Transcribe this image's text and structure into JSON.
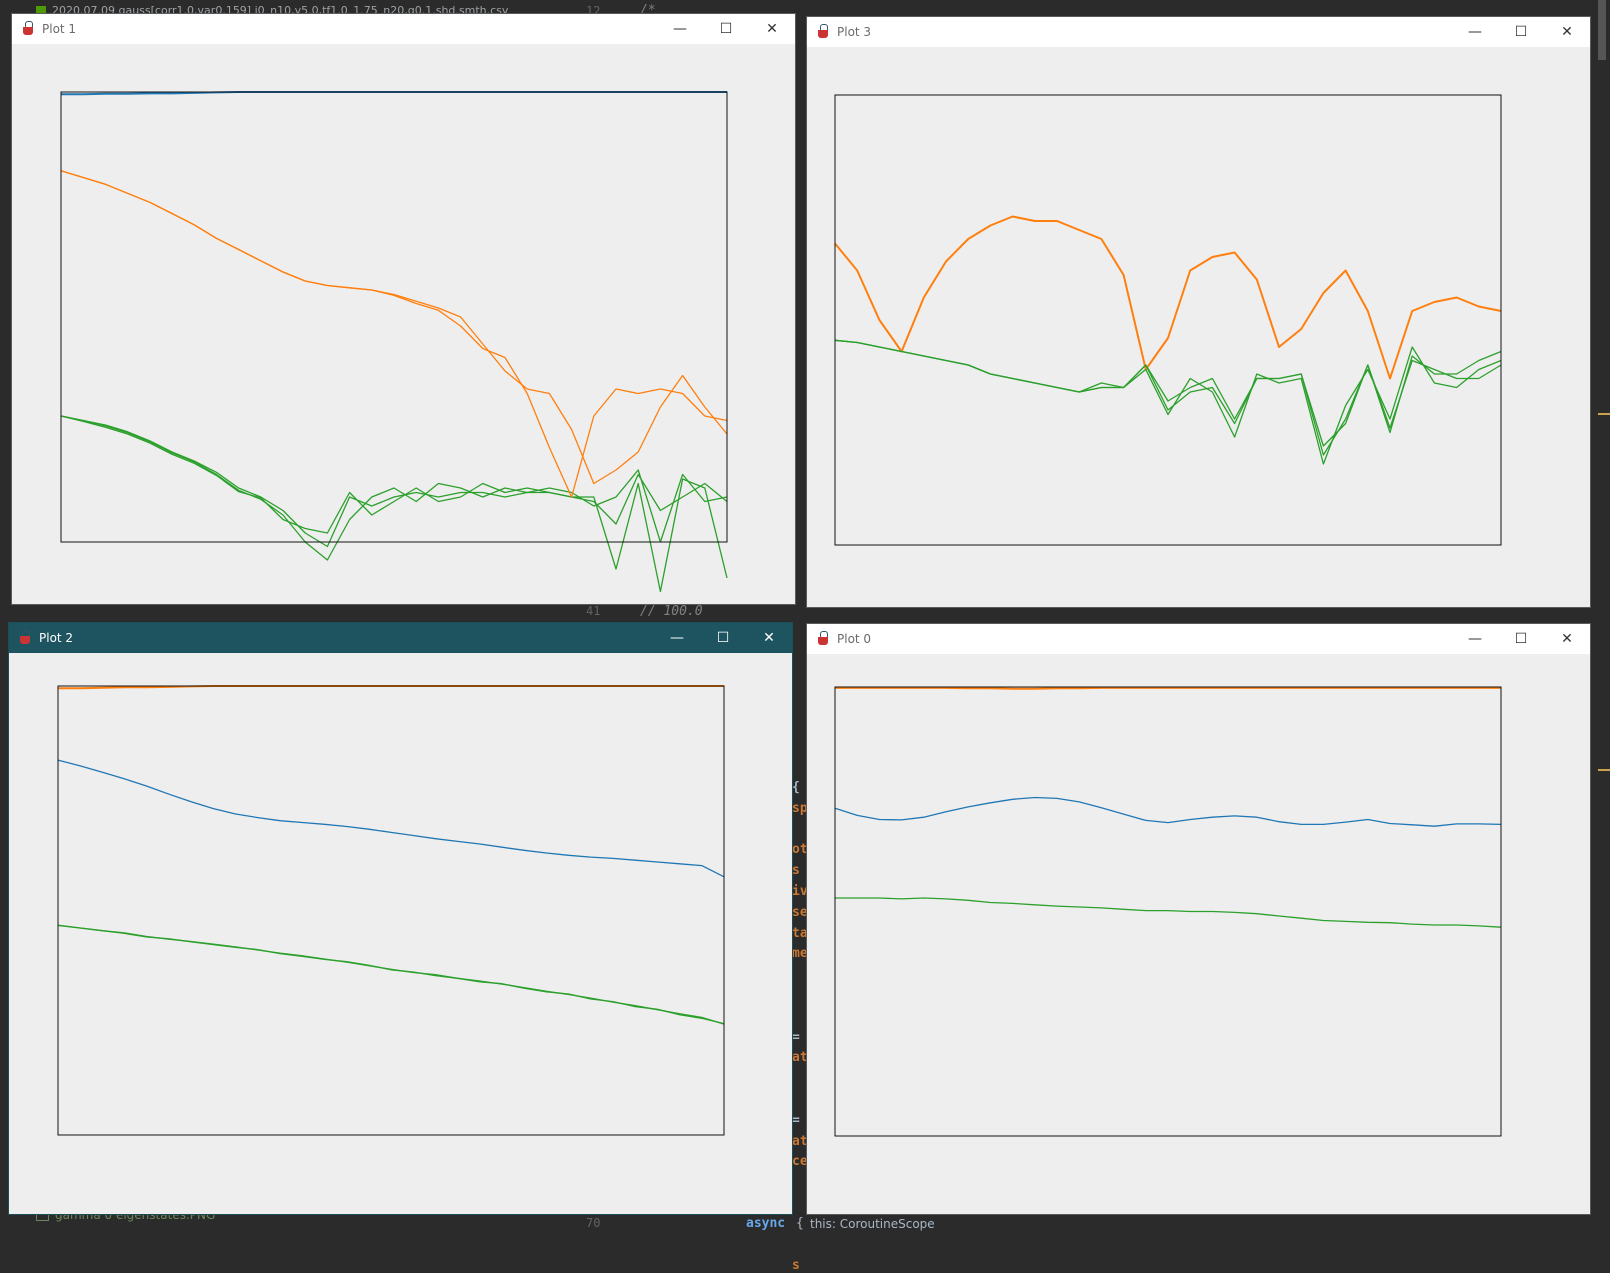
{
  "ide": {
    "top_tab": "2020.07.09 gauss[corr1.0,var0.159] i0_n10,v5.0,tf1.0_1.75_n20,g0.1.shd.smth.csv",
    "line_12": "12",
    "comment_start": "/*",
    "line_41": "41",
    "comment_100": "//       100.0",
    "line_70": "70",
    "keyword_async": "async",
    "brace": "{",
    "hint": "this: CoroutineScope",
    "file_item": "gamma 0 eigenstates.PNG",
    "peek_left": [
      "{",
      "sp",
      "",
      "ot",
      "s",
      "iv",
      "se",
      "ta",
      "me",
      "",
      "",
      "",
      "=",
      "at",
      "",
      "",
      "=",
      "at",
      "ce",
      "",
      "",
      "",
      "",
      "s"
    ]
  },
  "windows": [
    {
      "id": "plot1",
      "title": "Plot 1",
      "active": false,
      "controls": {
        "minimize": "—",
        "maximize": "☐",
        "close": "✕"
      }
    },
    {
      "id": "plot3",
      "title": "Plot 3",
      "active": false,
      "controls": {
        "minimize": "—",
        "maximize": "☐",
        "close": "✕"
      }
    },
    {
      "id": "plot2",
      "title": "Plot 2",
      "active": true,
      "controls": {
        "minimize": "—",
        "maximize": "☐",
        "close": "✕"
      }
    },
    {
      "id": "plot0",
      "title": "Plot 0",
      "active": false,
      "controls": {
        "minimize": "—",
        "maximize": "☐",
        "close": "✕"
      }
    }
  ],
  "colors": {
    "blue": "#1f77b4",
    "orange": "#ff7f0e",
    "green": "#2ca02c",
    "frame": "#111111",
    "plot_bg": "#eeeeee",
    "ide_bg": "#2b2b2b"
  },
  "chart_data": [
    {
      "type": "line",
      "title": "",
      "xlabel": "",
      "ylabel": "",
      "xlim": [
        0,
        30
      ],
      "ylim": [
        0,
        1
      ],
      "grid": false,
      "legend": "none",
      "x": [
        0,
        1,
        2,
        3,
        4,
        5,
        6,
        7,
        8,
        9,
        10,
        11,
        12,
        13,
        14,
        15,
        16,
        17,
        18,
        19,
        20,
        21,
        22,
        23,
        24,
        25,
        26,
        27,
        28,
        29,
        30
      ],
      "series": [
        {
          "name": "",
          "color": "#1f77b4",
          "values": [
            0.995,
            0.995,
            0.996,
            0.996,
            0.997,
            0.997,
            0.998,
            0.999,
            1,
            1,
            1,
            1,
            1,
            1,
            1,
            1,
            1,
            1,
            1,
            1,
            1,
            1,
            1,
            1,
            1,
            1,
            1,
            1,
            1,
            1,
            1
          ]
        },
        {
          "name": "",
          "color": "#ff7f0e",
          "values": [
            0.825,
            0.81,
            0.795,
            0.775,
            0.755,
            0.73,
            0.705,
            0.675,
            0.65,
            0.625,
            0.6,
            0.58,
            0.57,
            0.565,
            0.56,
            0.55,
            0.535,
            0.52,
            0.5,
            0.44,
            0.38,
            0.34,
            0.33,
            0.25,
            0.13,
            0.16,
            0.2,
            0.3,
            0.37,
            0.3,
            0.24
          ]
        },
        {
          "name": "",
          "color": "#2ca02c",
          "values": [
            0.28,
            0.27,
            0.26,
            0.245,
            0.225,
            0.2,
            0.18,
            0.155,
            0.12,
            0.1,
            0.07,
            0.02,
            -0.01,
            0.1,
            0.08,
            0.1,
            0.11,
            0.1,
            0.11,
            0.11,
            0.1,
            0.11,
            0.11,
            0.1,
            0.09,
            0.04,
            0.15,
            0.07,
            0.1,
            0.13,
            0.09
          ]
        },
        {
          "name": "",
          "color": "#2ca02c",
          "values": [
            0.28,
            0.27,
            0.258,
            0.243,
            0.223,
            0.198,
            0.178,
            0.15,
            0.115,
            0.095,
            0.06,
            0.0,
            -0.04,
            0.05,
            0.1,
            0.12,
            0.09,
            0.13,
            0.12,
            0.1,
            0.12,
            0.11,
            0.12,
            0.11,
            0.08,
            0.1,
            0.16,
            0.0,
            0.15,
            0.09,
            0.1
          ]
        },
        {
          "name": "",
          "color": "#2ca02c",
          "values": [
            0.28,
            0.268,
            0.255,
            0.24,
            0.22,
            0.195,
            0.175,
            0.148,
            0.112,
            0.098,
            0.05,
            0.03,
            0.02,
            0.11,
            0.06,
            0.09,
            0.12,
            0.09,
            0.1,
            0.13,
            0.11,
            0.12,
            0.11,
            0.1,
            0.1,
            -0.06,
            0.13,
            -0.11,
            0.14,
            0.12,
            -0.08
          ]
        },
        {
          "name": "",
          "color": "#ff7f0e",
          "values": [
            0.825,
            0.81,
            0.795,
            0.775,
            0.755,
            0.73,
            0.705,
            0.675,
            0.65,
            0.625,
            0.6,
            0.58,
            0.57,
            0.565,
            0.56,
            0.548,
            0.53,
            0.515,
            0.48,
            0.43,
            0.41,
            0.33,
            0.21,
            0.1,
            0.28,
            0.34,
            0.33,
            0.34,
            0.33,
            0.28,
            0.27
          ]
        }
      ]
    },
    {
      "type": "line",
      "title": "",
      "xlabel": "",
      "ylabel": "",
      "xlim": [
        0,
        30
      ],
      "ylim": [
        0,
        1
      ],
      "grid": false,
      "legend": "none",
      "x": [
        0,
        1,
        2,
        3,
        4,
        5,
        6,
        7,
        8,
        9,
        10,
        11,
        12,
        13,
        14,
        15,
        16,
        17,
        18,
        19,
        20,
        21,
        22,
        23,
        24,
        25,
        26,
        27,
        28,
        29,
        30
      ],
      "series": [
        {
          "name": "",
          "color": "#ff7f0e",
          "values": [
            0.67,
            0.61,
            0.5,
            0.43,
            0.55,
            0.63,
            0.68,
            0.71,
            0.73,
            0.72,
            0.72,
            0.7,
            0.68,
            0.6,
            0.39,
            0.46,
            0.61,
            0.64,
            0.65,
            0.59,
            0.44,
            0.48,
            0.56,
            0.61,
            0.52,
            0.37,
            0.52,
            0.54,
            0.55,
            0.53,
            0.52
          ]
        },
        {
          "name": "",
          "color": "#2ca02c",
          "values": [
            0.455,
            0.45,
            0.44,
            0.43,
            0.42,
            0.41,
            0.4,
            0.38,
            0.37,
            0.36,
            0.35,
            0.34,
            0.35,
            0.35,
            0.4,
            0.32,
            0.35,
            0.37,
            0.28,
            0.37,
            0.37,
            0.38,
            0.2,
            0.28,
            0.4,
            0.25,
            0.42,
            0.38,
            0.38,
            0.41,
            0.43
          ]
        },
        {
          "name": "",
          "color": "#2ca02c",
          "values": [
            0.455,
            0.45,
            0.44,
            0.43,
            0.42,
            0.41,
            0.4,
            0.38,
            0.37,
            0.36,
            0.35,
            0.34,
            0.36,
            0.35,
            0.39,
            0.29,
            0.37,
            0.34,
            0.24,
            0.38,
            0.36,
            0.37,
            0.18,
            0.31,
            0.39,
            0.28,
            0.44,
            0.36,
            0.35,
            0.39,
            0.41
          ]
        },
        {
          "name": "",
          "color": "#2ca02c",
          "values": [
            0.455,
            0.45,
            0.44,
            0.43,
            0.42,
            0.41,
            0.4,
            0.38,
            0.37,
            0.36,
            0.35,
            0.34,
            0.35,
            0.35,
            0.4,
            0.3,
            0.34,
            0.35,
            0.27,
            0.37,
            0.37,
            0.38,
            0.22,
            0.27,
            0.4,
            0.26,
            0.41,
            0.39,
            0.37,
            0.37,
            0.4
          ]
        }
      ]
    },
    {
      "type": "line",
      "title": "",
      "xlabel": "",
      "ylabel": "",
      "xlim": [
        0,
        30
      ],
      "ylim": [
        0,
        1
      ],
      "grid": false,
      "legend": "none",
      "x": [
        0,
        1,
        2,
        3,
        4,
        5,
        6,
        7,
        8,
        9,
        10,
        11,
        12,
        13,
        14,
        15,
        16,
        17,
        18,
        19,
        20,
        21,
        22,
        23,
        24,
        25,
        26,
        27,
        28,
        29,
        30
      ],
      "series": [
        {
          "name": "",
          "color": "#ff7f0e",
          "values": [
            0.995,
            0.995,
            0.996,
            0.997,
            0.997,
            0.998,
            0.999,
            1,
            1,
            1,
            1,
            1,
            1,
            1,
            1,
            1,
            1,
            1,
            1,
            1,
            1,
            1,
            1,
            1,
            1,
            1,
            1,
            1,
            1,
            1,
            1
          ]
        },
        {
          "name": "",
          "color": "#1f77b4",
          "values": [
            0.835,
            0.822,
            0.808,
            0.793,
            0.777,
            0.759,
            0.742,
            0.727,
            0.715,
            0.707,
            0.7,
            0.696,
            0.692,
            0.687,
            0.681,
            0.674,
            0.667,
            0.66,
            0.654,
            0.648,
            0.641,
            0.634,
            0.628,
            0.623,
            0.619,
            0.616,
            0.612,
            0.608,
            0.604,
            0.6,
            0.575
          ]
        },
        {
          "name": "",
          "color": "#2ca02c",
          "values": [
            0.467,
            0.461,
            0.455,
            0.45,
            0.442,
            0.436,
            0.431,
            0.425,
            0.419,
            0.412,
            0.405,
            0.399,
            0.392,
            0.385,
            0.377,
            0.369,
            0.362,
            0.357,
            0.349,
            0.343,
            0.336,
            0.328,
            0.32,
            0.313,
            0.305,
            0.296,
            0.288,
            0.279,
            0.27,
            0.262,
            0.247
          ]
        },
        {
          "name": "",
          "color": "#2ca02c",
          "values": [
            0.467,
            0.461,
            0.455,
            0.449,
            0.441,
            0.437,
            0.43,
            0.424,
            0.418,
            0.413,
            0.404,
            0.398,
            0.391,
            0.386,
            0.378,
            0.368,
            0.363,
            0.355,
            0.349,
            0.341,
            0.337,
            0.327,
            0.319,
            0.314,
            0.303,
            0.297,
            0.286,
            0.28,
            0.268,
            0.26,
            0.248
          ]
        }
      ]
    },
    {
      "type": "line",
      "title": "",
      "xlabel": "",
      "ylabel": "",
      "xlim": [
        0,
        30
      ],
      "ylim": [
        0,
        1
      ],
      "grid": false,
      "legend": "none",
      "x": [
        0,
        1,
        2,
        3,
        4,
        5,
        6,
        7,
        8,
        9,
        10,
        11,
        12,
        13,
        14,
        15,
        16,
        17,
        18,
        19,
        20,
        21,
        22,
        23,
        24,
        25,
        26,
        27,
        28,
        29,
        30
      ],
      "series": [
        {
          "name": "",
          "color": "#ff7f0e",
          "values": [
            0.998,
            0.998,
            0.998,
            0.998,
            0.998,
            0.998,
            0.997,
            0.997,
            0.996,
            0.996,
            0.997,
            0.997,
            0.998,
            0.998,
            0.998,
            0.998,
            0.998,
            0.998,
            0.998,
            0.998,
            0.998,
            0.998,
            0.998,
            0.998,
            0.998,
            0.998,
            0.998,
            0.998,
            0.998,
            0.998,
            0.998
          ]
        },
        {
          "name": "",
          "color": "#1f77b4",
          "values": [
            0.73,
            0.714,
            0.705,
            0.704,
            0.71,
            0.722,
            0.733,
            0.742,
            0.75,
            0.754,
            0.752,
            0.744,
            0.731,
            0.717,
            0.703,
            0.698,
            0.705,
            0.71,
            0.713,
            0.71,
            0.7,
            0.694,
            0.694,
            0.699,
            0.705,
            0.696,
            0.693,
            0.69,
            0.695,
            0.695,
            0.694
          ]
        },
        {
          "name": "",
          "color": "#2ca02c",
          "values": [
            0.53,
            0.53,
            0.53,
            0.528,
            0.53,
            0.528,
            0.525,
            0.52,
            0.518,
            0.515,
            0.512,
            0.51,
            0.508,
            0.505,
            0.502,
            0.502,
            0.5,
            0.5,
            0.498,
            0.495,
            0.49,
            0.485,
            0.48,
            0.478,
            0.476,
            0.475,
            0.472,
            0.47,
            0.47,
            0.468,
            0.465
          ]
        }
      ]
    }
  ]
}
